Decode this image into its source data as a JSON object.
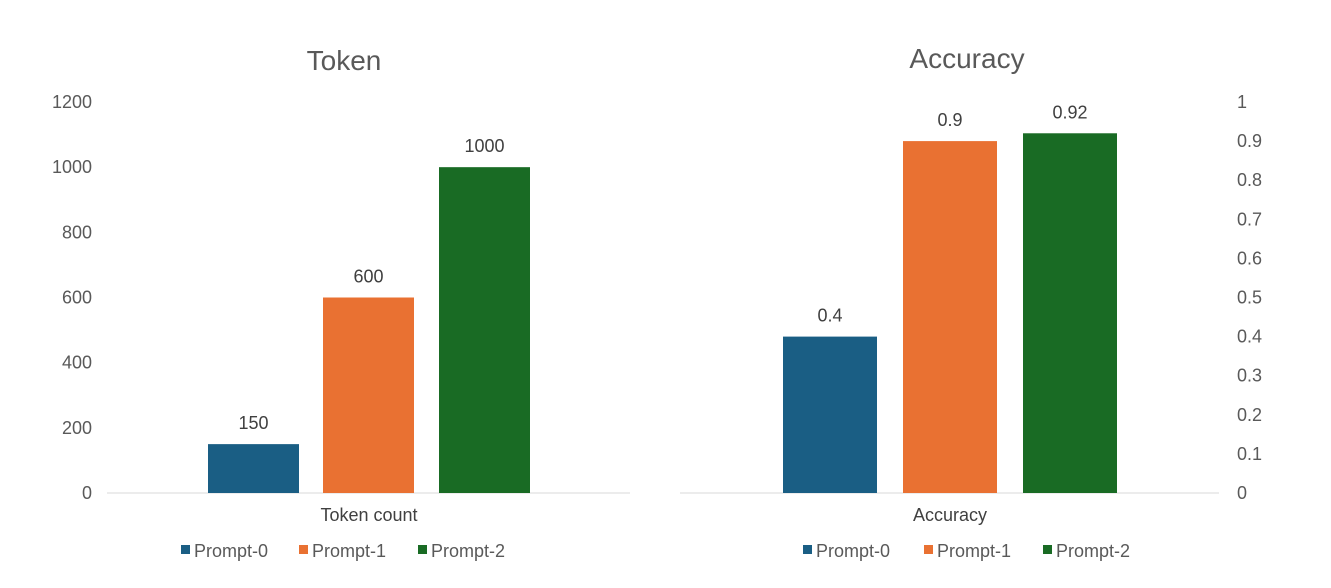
{
  "chart_data": [
    {
      "type": "bar",
      "title": "Token",
      "categories": [
        "Token count"
      ],
      "series": [
        {
          "name": "Prompt-0",
          "values": [
            150
          ],
          "color": "#1a5e84"
        },
        {
          "name": "Prompt-1",
          "values": [
            600
          ],
          "color": "#e97132"
        },
        {
          "name": "Prompt-2",
          "values": [
            1000
          ],
          "color": "#196b24"
        }
      ],
      "ylim": [
        0,
        1200
      ],
      "yticks": [
        "0",
        "200",
        "400",
        "600",
        "800",
        "1000",
        "1200"
      ],
      "y_axis_side": "left",
      "grid": false,
      "legend": "bottom"
    },
    {
      "type": "bar",
      "title": "Accuracy",
      "categories": [
        "Accuracy"
      ],
      "series": [
        {
          "name": "Prompt-0",
          "values": [
            0.4
          ],
          "color": "#1a5e84"
        },
        {
          "name": "Prompt-1",
          "values": [
            0.9
          ],
          "color": "#e97132"
        },
        {
          "name": "Prompt-2",
          "values": [
            0.92
          ],
          "color": "#196b24"
        }
      ],
      "ylim": [
        0,
        1
      ],
      "yticks": [
        "0",
        "0.1",
        "0.2",
        "0.3",
        "0.4",
        "0.5",
        "0.6",
        "0.7",
        "0.8",
        "0.9",
        "1"
      ],
      "y_axis_side": "right",
      "grid": false,
      "legend": "bottom"
    }
  ]
}
